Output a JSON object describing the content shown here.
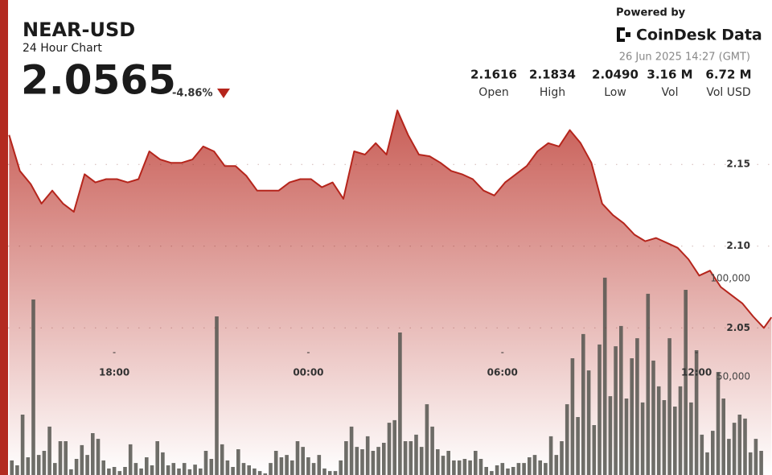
{
  "header": {
    "title": "NEAR-USD",
    "subtitle": "24 Hour Chart",
    "price": "2.0565",
    "change": "-4.86%",
    "powered": "Powered by",
    "brand": "CoinDesk Data",
    "timestamp": "26 Jun 2025 14:27 (GMT)",
    "stats": [
      {
        "value": "2.1616",
        "label": "Open"
      },
      {
        "value": "2.1834",
        "label": "High"
      },
      {
        "value": "2.0490",
        "label": "Low"
      },
      {
        "value": "3.16 M",
        "label": "Vol"
      },
      {
        "value": "6.72 M",
        "label": "Vol USD"
      }
    ]
  },
  "chart_data": {
    "type": "line",
    "xlim": [
      883,
      2300
    ],
    "ylim": [
      1.96,
      2.19
    ],
    "y2lim": [
      0,
      240000
    ],
    "xticks": [
      {
        "value": 1080,
        "label": "18:00"
      },
      {
        "value": 1440,
        "label": "00:00"
      },
      {
        "value": 1800,
        "label": "06:00"
      },
      {
        "value": 2160,
        "label": "12:00"
      }
    ],
    "yticks": [
      2.05,
      {
        "value": 2.1,
        "label": "2.10"
      },
      2.15
    ],
    "y2ticks": [
      {
        "value": 50000,
        "label": "50,000"
      },
      {
        "value": 100000,
        "label": "100,000"
      }
    ],
    "grid": true,
    "series": [
      {
        "type": "line",
        "color": "#b5251c",
        "x": [
          885,
          905,
          925,
          945,
          965,
          985,
          1005,
          1025,
          1045,
          1065,
          1085,
          1105,
          1125,
          1145,
          1165,
          1185,
          1205,
          1225,
          1245,
          1265,
          1285,
          1305,
          1325,
          1345,
          1365,
          1385,
          1405,
          1425,
          1445,
          1465,
          1485,
          1505,
          1525,
          1545,
          1565,
          1585,
          1605,
          1625,
          1645,
          1665,
          1685,
          1705,
          1725,
          1745,
          1765,
          1785,
          1805,
          1825,
          1845,
          1865,
          1885,
          1905,
          1925,
          1945,
          1965,
          1985,
          2005,
          2025,
          2045,
          2065,
          2085,
          2105,
          2125,
          2145,
          2165,
          2185,
          2205,
          2225,
          2245,
          2265,
          2285,
          2299
        ],
        "values": [
          2.168,
          2.146,
          2.138,
          2.126,
          2.134,
          2.126,
          2.121,
          2.144,
          2.139,
          2.141,
          2.141,
          2.139,
          2.141,
          2.158,
          2.153,
          2.151,
          2.151,
          2.153,
          2.161,
          2.158,
          2.149,
          2.149,
          2.143,
          2.134,
          2.134,
          2.134,
          2.139,
          2.141,
          2.141,
          2.136,
          2.139,
          2.129,
          2.158,
          2.156,
          2.163,
          2.156,
          2.183,
          2.168,
          2.156,
          2.155,
          2.151,
          2.146,
          2.144,
          2.141,
          2.134,
          2.131,
          2.139,
          2.144,
          2.149,
          2.158,
          2.163,
          2.161,
          2.171,
          2.163,
          2.151,
          2.126,
          2.119,
          2.114,
          2.107,
          2.103,
          2.105,
          2.102,
          2.099,
          2.092,
          2.082,
          2.085,
          2.075,
          2.07,
          2.065,
          2.057,
          2.05,
          2.0565
        ]
      },
      {
        "type": "bar",
        "axis": "y2",
        "color": "#55554f",
        "x": [
          890,
          900,
          910,
          920,
          930,
          940,
          950,
          960,
          970,
          980,
          990,
          1000,
          1010,
          1020,
          1030,
          1040,
          1050,
          1060,
          1070,
          1080,
          1090,
          1100,
          1110,
          1120,
          1130,
          1140,
          1150,
          1160,
          1170,
          1180,
          1190,
          1200,
          1210,
          1220,
          1230,
          1240,
          1250,
          1260,
          1270,
          1280,
          1290,
          1300,
          1310,
          1320,
          1330,
          1340,
          1350,
          1360,
          1370,
          1380,
          1390,
          1400,
          1410,
          1420,
          1430,
          1440,
          1450,
          1460,
          1470,
          1480,
          1490,
          1500,
          1510,
          1520,
          1530,
          1540,
          1550,
          1560,
          1570,
          1580,
          1590,
          1600,
          1610,
          1620,
          1630,
          1640,
          1650,
          1660,
          1670,
          1680,
          1690,
          1700,
          1710,
          1720,
          1730,
          1740,
          1750,
          1760,
          1770,
          1780,
          1790,
          1800,
          1810,
          1820,
          1830,
          1840,
          1850,
          1860,
          1870,
          1880,
          1890,
          1900,
          1910,
          1920,
          1930,
          1940,
          1950,
          1960,
          1970,
          1980,
          1990,
          2000,
          2010,
          2020,
          2030,
          2040,
          2050,
          2060,
          2070,
          2080,
          2090,
          2100,
          2110,
          2120,
          2130,
          2140,
          2150,
          2160,
          2170,
          2180,
          2190,
          2200,
          2210,
          2220,
          2230,
          2240,
          2250,
          2260,
          2270,
          2280
        ],
        "values": [
          7400,
          4900,
          30700,
          9000,
          89300,
          10200,
          12300,
          24600,
          6100,
          17200,
          17200,
          2900,
          8200,
          15200,
          10200,
          21300,
          18400,
          7400,
          3300,
          4100,
          2000,
          4100,
          15600,
          6100,
          3300,
          9000,
          4900,
          17200,
          11500,
          4900,
          6100,
          3300,
          6100,
          2900,
          5300,
          3300,
          12300,
          8200,
          80700,
          15600,
          7400,
          4100,
          13100,
          6100,
          4900,
          3300,
          2000,
          800,
          6100,
          12300,
          9000,
          10200,
          7400,
          17200,
          14300,
          9000,
          6100,
          10200,
          3300,
          2000,
          2000,
          7400,
          17200,
          24600,
          14300,
          13100,
          19700,
          12300,
          14300,
          16400,
          26600,
          27900,
          72500,
          17200,
          17200,
          20500,
          14300,
          36000,
          24600,
          13100,
          9800,
          12300,
          7400,
          7400,
          8200,
          7400,
          12300,
          8200,
          4100,
          2000,
          4900,
          6100,
          3300,
          4100,
          6100,
          6100,
          9000,
          10200,
          7400,
          6100,
          19700,
          10200,
          17200,
          36000,
          59400,
          29500,
          71700,
          53200,
          25400,
          66400,
          100400,
          40100,
          65500,
          75800,
          38900,
          59400,
          69600,
          36900,
          92200,
          58200,
          45100,
          38100,
          69600,
          34800,
          45100,
          94200,
          36900,
          63500,
          20500,
          11500,
          22500,
          52400,
          38900,
          18400,
          26600,
          30700,
          28700,
          11500,
          18400,
          12300
        ]
      }
    ]
  }
}
